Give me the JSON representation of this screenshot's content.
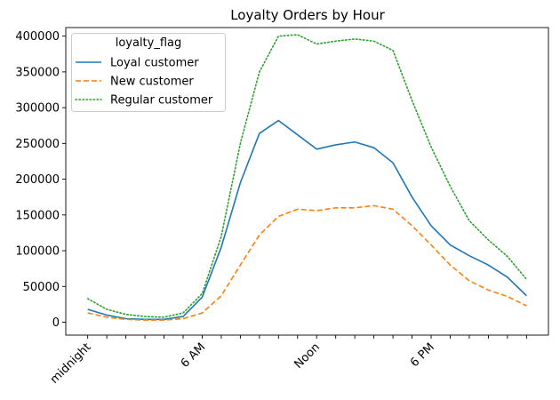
{
  "chart_data": {
    "type": "line",
    "title": "Loyalty Orders by Hour",
    "xlabel": "",
    "ylabel": "",
    "x": [
      0,
      1,
      2,
      3,
      4,
      5,
      6,
      7,
      8,
      9,
      10,
      11,
      12,
      13,
      14,
      15,
      16,
      17,
      18,
      19,
      20,
      21,
      22,
      23
    ],
    "x_tick_positions": [
      0,
      1,
      2,
      3,
      4,
      5,
      6,
      7,
      8,
      9,
      10,
      11,
      12,
      13,
      14,
      15,
      16,
      17,
      18,
      19,
      20,
      21,
      22,
      23
    ],
    "x_tick_labels": [
      "midnight",
      "",
      "",
      "",
      "",
      "",
      "6 AM",
      "",
      "",
      "",
      "",
      "",
      "Noon",
      "",
      "",
      "",
      "",
      "",
      "6 PM",
      "",
      "",
      "",
      "",
      ""
    ],
    "y_ticks": [
      0,
      50000,
      100000,
      150000,
      200000,
      250000,
      300000,
      350000,
      400000
    ],
    "y_tick_labels": [
      "0",
      "50000",
      "100000",
      "150000",
      "200000",
      "250000",
      "300000",
      "350000",
      "400000"
    ],
    "xlim": [
      -1.15,
      24.15
    ],
    "ylim": [
      -18000,
      412000
    ],
    "grid": false,
    "legend": {
      "title": "loyalty_flag",
      "placement": "top-left"
    },
    "series": [
      {
        "name": "Loyal customer",
        "color": "#1f77b4",
        "dash": "solid",
        "values": [
          18000,
          10000,
          5000,
          4000,
          4000,
          8000,
          35000,
          105000,
          195000,
          264000,
          282000,
          262000,
          242000,
          248000,
          252000,
          244000,
          223000,
          175000,
          135000,
          108000,
          93000,
          80000,
          63000,
          37000
        ]
      },
      {
        "name": "New customer",
        "color": "#ff7f0e",
        "dash": "dashed",
        "values": [
          13000,
          7000,
          4000,
          3000,
          3000,
          5000,
          13000,
          37000,
          80000,
          122000,
          148000,
          158000,
          156000,
          160000,
          160000,
          163000,
          158000,
          135000,
          108000,
          80000,
          58000,
          45000,
          36000,
          23000
        ]
      },
      {
        "name": "Regular customer",
        "color": "#2ca02c",
        "dash": "dotted",
        "values": [
          33000,
          18000,
          11000,
          8000,
          7000,
          13000,
          40000,
          120000,
          250000,
          350000,
          400000,
          402000,
          389000,
          393000,
          396000,
          393000,
          380000,
          310000,
          245000,
          190000,
          142000,
          115000,
          92000,
          60000
        ]
      }
    ]
  }
}
